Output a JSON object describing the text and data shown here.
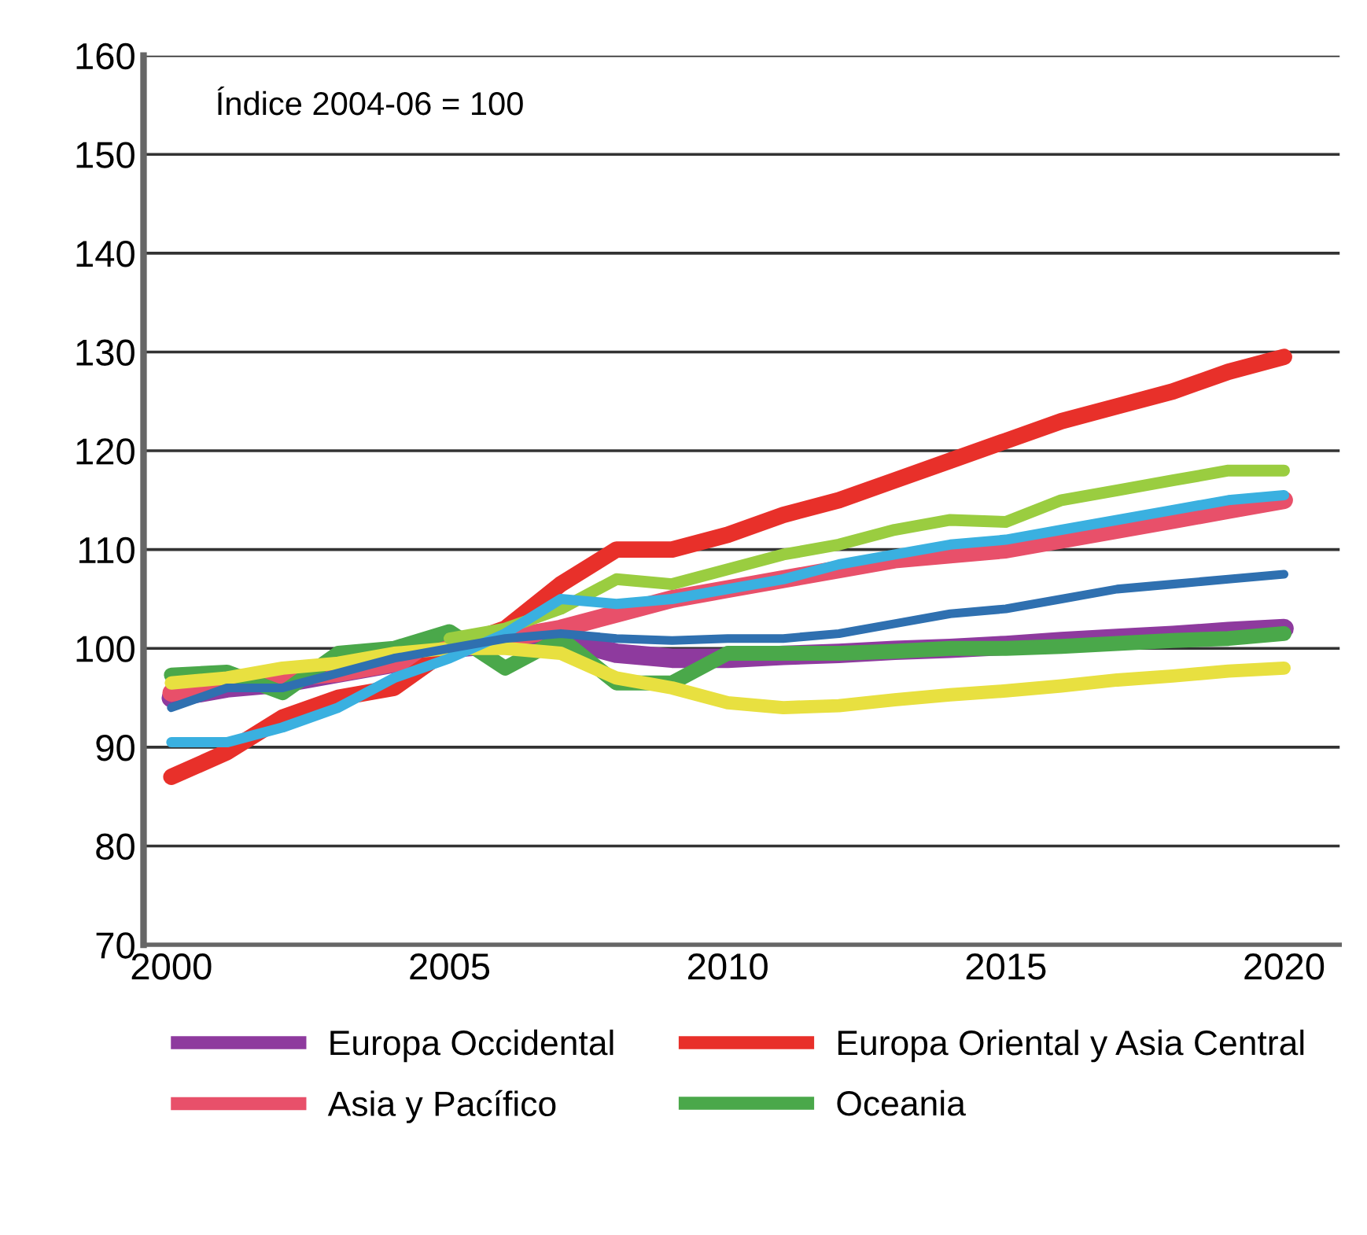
{
  "chart_data": {
    "type": "line",
    "x": [
      2000,
      2001,
      2002,
      2003,
      2004,
      2005,
      2006,
      2007,
      2008,
      2009,
      2010,
      2011,
      2012,
      2013,
      2014,
      2015,
      2016,
      2017,
      2018,
      2019,
      2020
    ],
    "series": [
      {
        "name": "Europa Occidental",
        "color": "#8e3a9e",
        "values": [
          95,
          96,
          96.5,
          97.5,
          98.5,
          100,
          100.5,
          101,
          99.5,
          99,
          99,
          99.3,
          99.5,
          99.8,
          100,
          100.3,
          100.7,
          101,
          101.3,
          101.7,
          102
        ]
      },
      {
        "name": "Asia y Pacífico",
        "color": "#e8506a",
        "values": [
          95.5,
          96.5,
          97,
          97.5,
          98.5,
          100,
          101,
          102,
          103.5,
          105,
          106,
          107,
          108,
          109,
          109.5,
          110,
          111,
          112,
          113,
          114,
          115
        ]
      },
      {
        "name": "Europa Oriental y Asia Central",
        "color": "#e8302a",
        "values": [
          87,
          89.5,
          93,
          95,
          96,
          100,
          102,
          106.5,
          110,
          110,
          111.5,
          113.5,
          115,
          117,
          119,
          121,
          123,
          124.5,
          126,
          128,
          129.5
        ]
      },
      {
        "name": "Oceania",
        "color": "#4aa84a",
        "values": [
          97.3,
          97.6,
          95.5,
          99.5,
          100,
          101.7,
          98,
          101,
          96.5,
          96.5,
          99.5,
          99.5,
          99.5,
          99.7,
          100,
          100,
          100.2,
          100.5,
          100.8,
          101,
          101.5
        ]
      },
      {
        "color": "#e8e040",
        "values": [
          96.5,
          97,
          98,
          98.5,
          99.5,
          100,
          100,
          99.5,
          97,
          96,
          94.5,
          94,
          94.2,
          94.8,
          95.3,
          95.7,
          96.2,
          96.8,
          97.2,
          97.7,
          98
        ]
      },
      {
        "color": "#9acd40",
        "values": [
          null,
          null,
          null,
          null,
          null,
          101,
          102,
          104,
          107,
          106.5,
          108,
          109.5,
          110.5,
          112,
          113,
          112.8,
          115,
          116,
          117,
          118,
          118
        ]
      },
      {
        "color": "#3ab0e0",
        "values": [
          90.5,
          90.5,
          92,
          94,
          97,
          99,
          101.5,
          105,
          104.5,
          105,
          106,
          107,
          108.5,
          109.5,
          110.5,
          111,
          112,
          113,
          114,
          115,
          115.5
        ]
      },
      {
        "color": "#2f70b0",
        "values": [
          94,
          96,
          96,
          97.5,
          99,
          100,
          101,
          101.5,
          101,
          100.8,
          101,
          101,
          101.5,
          102.5,
          103.5,
          104,
          105,
          106,
          106.5,
          107,
          107.5
        ]
      }
    ],
    "xlim": [
      1999.5,
      2021
    ],
    "xticks": [
      2000,
      2005,
      2010,
      2015,
      2020
    ],
    "ylim": [
      70,
      160
    ],
    "yticks": [
      70,
      80,
      90,
      100,
      110,
      120,
      130,
      140,
      150,
      160
    ],
    "grid": "y",
    "legend": "bottom",
    "marker": "none",
    "line_style": "solid",
    "annotations": [
      "Índice 2004-06 = 100"
    ]
  }
}
